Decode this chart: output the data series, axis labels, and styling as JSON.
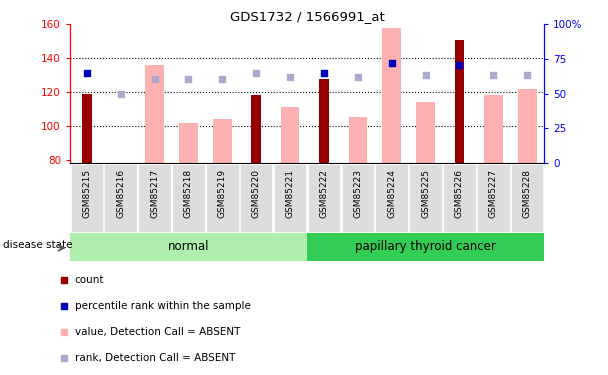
{
  "title": "GDS1732 / 1566991_at",
  "samples": [
    "GSM85215",
    "GSM85216",
    "GSM85217",
    "GSM85218",
    "GSM85219",
    "GSM85220",
    "GSM85221",
    "GSM85222",
    "GSM85223",
    "GSM85224",
    "GSM85225",
    "GSM85226",
    "GSM85227",
    "GSM85228"
  ],
  "count_values": [
    119,
    null,
    null,
    null,
    null,
    118,
    null,
    128,
    null,
    null,
    null,
    151,
    null,
    null
  ],
  "rank_values_left": [
    131,
    null,
    null,
    null,
    null,
    null,
    null,
    131,
    null,
    137,
    null,
    136,
    null,
    null
  ],
  "absent_value_bars": [
    null,
    null,
    136,
    102,
    104,
    null,
    111,
    null,
    105,
    158,
    114,
    null,
    118,
    122
  ],
  "absent_rank_left": [
    null,
    119,
    128,
    128,
    128,
    131,
    129,
    null,
    129,
    null,
    130,
    null,
    130,
    130
  ],
  "ylim_left": [
    78,
    160
  ],
  "ylim_right": [
    0,
    100
  ],
  "yticks_left": [
    80,
    100,
    120,
    140,
    160
  ],
  "yticks_right": [
    0,
    25,
    50,
    75,
    100
  ],
  "ytick_labels_right": [
    "0",
    "25",
    "50",
    "75",
    "100%"
  ],
  "hgrid_lines": [
    100,
    120,
    140
  ],
  "count_color": "#990000",
  "rank_color": "#0000BB",
  "absent_value_color": "#FFB0B0",
  "absent_rank_color": "#AAAACC",
  "normal_bg": "#B0EEB0",
  "cancer_bg": "#33CC55",
  "normal_label": "normal",
  "cancer_label": "papillary thyroid cancer",
  "disease_state_label": "disease state",
  "legend": [
    {
      "symbol": "s",
      "color": "#990000",
      "text": "count"
    },
    {
      "symbol": "s",
      "color": "#0000BB",
      "text": "percentile rank within the sample"
    },
    {
      "symbol": "s",
      "color": "#FFB0B0",
      "text": "value, Detection Call = ABSENT"
    },
    {
      "symbol": "s",
      "color": "#AAAACC",
      "text": "rank, Detection Call = ABSENT"
    }
  ]
}
